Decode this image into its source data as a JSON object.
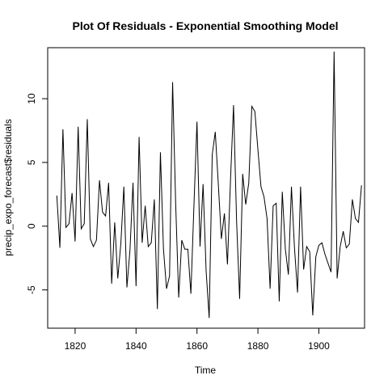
{
  "chart_data": {
    "type": "line",
    "title": "Plot Of Residuals - Exponential Smoothing Model",
    "xlabel": "Time",
    "ylabel": "precip_expo_forecast$residuals",
    "xlim": [
      1811,
      1915
    ],
    "ylim": [
      -8,
      14
    ],
    "grid": false,
    "legend": "none",
    "line_color": "#000000",
    "x_ticks": [
      1820,
      1840,
      1860,
      1880,
      1900
    ],
    "y_ticks": [
      -5,
      0,
      5,
      10
    ],
    "x_tick_labels": [
      "1820",
      "1840",
      "1860",
      "1880",
      "1900"
    ],
    "y_tick_labels": [
      "-5",
      "0",
      "5",
      "10"
    ],
    "x_start": 1814,
    "x_step": 1,
    "values": [
      2.4,
      -1.7,
      7.6,
      -0.1,
      0.2,
      2.6,
      -1.2,
      7.8,
      -0.2,
      0.2,
      8.4,
      -1.0,
      -1.6,
      -1.1,
      3.6,
      1.1,
      0.8,
      3.4,
      -4.5,
      0.3,
      -4.1,
      -1.4,
      3.1,
      -4.8,
      -1.9,
      3.4,
      -4.7,
      7.0,
      -1.3,
      1.6,
      -1.6,
      -1.3,
      2.1,
      -6.5,
      5.8,
      -1.8,
      -4.9,
      -3.9,
      11.3,
      1.8,
      -5.6,
      -1.1,
      -1.8,
      -1.8,
      -5.3,
      1.6,
      8.2,
      -1.6,
      3.3,
      -3.5,
      -7.2,
      5.6,
      7.4,
      3.3,
      -1.0,
      1.0,
      -3.0,
      3.6,
      9.5,
      0.4,
      -5.7,
      4.1,
      1.7,
      3.4,
      9.4,
      9.0,
      6.0,
      3.1,
      2.3,
      0.6,
      -4.9,
      1.6,
      1.8,
      -5.9,
      2.7,
      -1.8,
      -3.8,
      3.1,
      -1.7,
      -5.2,
      3.1,
      -3.4,
      -1.6,
      -2.0,
      -7.0,
      -2.4,
      -1.5,
      -1.3,
      -2.2,
      -2.9,
      -3.6,
      13.7,
      -4.1,
      -1.6,
      -0.4,
      -1.7,
      -1.4,
      2.1,
      0.6,
      0.3,
      3.2
    ]
  }
}
